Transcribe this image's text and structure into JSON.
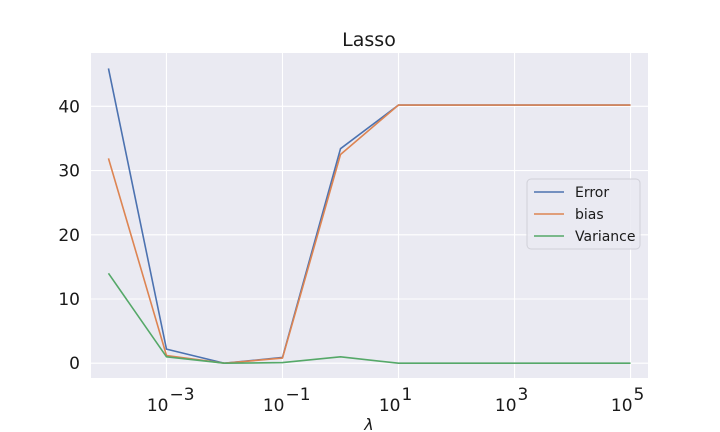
{
  "chart_data": {
    "type": "line",
    "title": "Lasso",
    "xlabel": "λ",
    "ylabel": "",
    "xscale": "log",
    "xlim": [
      5e-05,
      200000
    ],
    "ylim": [
      -2.3,
      48.3
    ],
    "x": [
      0.0001,
      0.001,
      0.01,
      0.1,
      1,
      10,
      100,
      1000,
      10000,
      100000
    ],
    "series": [
      {
        "name": "Error",
        "color": "#4c72b0",
        "values": [
          45.9,
          2.2,
          0.0,
          0.9,
          33.4,
          40.2,
          40.2,
          40.2,
          40.2,
          40.2
        ]
      },
      {
        "name": "bias",
        "color": "#dd8452",
        "values": [
          31.9,
          1.2,
          0.0,
          0.8,
          32.5,
          40.2,
          40.2,
          40.2,
          40.2,
          40.2
        ]
      },
      {
        "name": "Variance",
        "color": "#55a868",
        "values": [
          14.0,
          1.0,
          0.0,
          0.1,
          1.0,
          0.0,
          0.0,
          0.0,
          0.0,
          0.0
        ]
      }
    ],
    "x_ticks": [
      {
        "value": 0.001,
        "base": "10",
        "exp": "−3"
      },
      {
        "value": 0.1,
        "base": "10",
        "exp": "−1"
      },
      {
        "value": 10,
        "base": "10",
        "exp": "1"
      },
      {
        "value": 1000,
        "base": "10",
        "exp": "3"
      },
      {
        "value": 100000,
        "base": "10",
        "exp": "5"
      }
    ],
    "y_ticks": [
      0,
      10,
      20,
      30,
      40
    ],
    "grid": true,
    "legend_position": "center-right",
    "plot_background": "#eaeaf2",
    "grid_color": "#ffffff"
  }
}
